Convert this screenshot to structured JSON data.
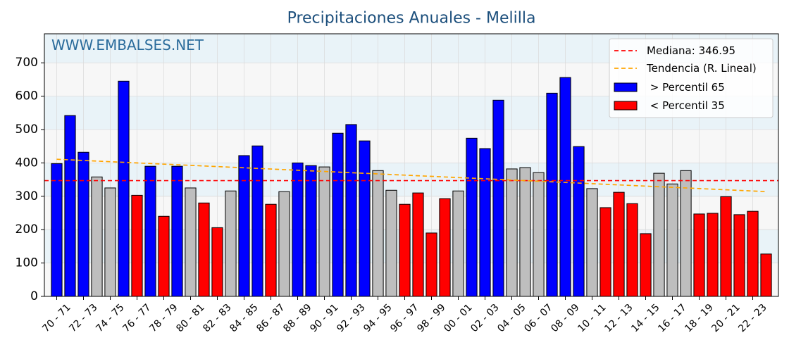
{
  "chart_data": {
    "type": "bar",
    "title": "Precipitaciones Anuales - Melilla",
    "watermark": "WWW.EMBALSES.NET",
    "xtick_labels": [
      "70 - 71",
      "72 - 73",
      "74 - 75",
      "76 - 77",
      "78 - 79",
      "80 - 81",
      "82 - 83",
      "84 - 85",
      "86 - 87",
      "88 - 89",
      "90 - 91",
      "92 - 93",
      "94 - 95",
      "96 - 97",
      "98 - 99",
      "00 - 01",
      "02 - 03",
      "04 - 05",
      "06 - 07",
      "08 - 09",
      "10 - 11",
      "12 - 13",
      "14 - 15",
      "16 - 17",
      "18 - 19",
      "20 - 21",
      "22 - 23"
    ],
    "yticks": [
      0,
      100,
      200,
      300,
      400,
      500,
      600,
      700
    ],
    "ylim": [
      0,
      787
    ],
    "values": [
      398,
      542,
      432,
      358,
      325,
      645,
      303,
      390,
      240,
      390,
      325,
      280,
      206,
      316,
      422,
      451,
      276,
      314,
      400,
      392,
      388,
      489,
      515,
      466,
      377,
      318,
      276,
      310,
      190,
      293,
      316,
      474,
      443,
      588,
      382,
      386,
      371,
      609,
      656,
      449,
      323,
      266,
      312,
      278,
      188,
      369,
      337,
      377,
      247,
      249,
      299,
      245,
      255,
      127
    ],
    "bar_colors": [
      "#0000ff",
      "#0000ff",
      "#0000ff",
      "#bebebe",
      "#bebebe",
      "#0000ff",
      "#ff0000",
      "#0000ff",
      "#ff0000",
      "#0000ff",
      "#bebebe",
      "#ff0000",
      "#ff0000",
      "#bebebe",
      "#0000ff",
      "#0000ff",
      "#ff0000",
      "#bebebe",
      "#0000ff",
      "#0000ff",
      "#bebebe",
      "#0000ff",
      "#0000ff",
      "#0000ff",
      "#bebebe",
      "#bebebe",
      "#ff0000",
      "#ff0000",
      "#ff0000",
      "#ff0000",
      "#bebebe",
      "#0000ff",
      "#0000ff",
      "#0000ff",
      "#bebebe",
      "#bebebe",
      "#bebebe",
      "#0000ff",
      "#0000ff",
      "#0000ff",
      "#bebebe",
      "#ff0000",
      "#ff0000",
      "#ff0000",
      "#ff0000",
      "#bebebe",
      "#bebebe",
      "#bebebe",
      "#ff0000",
      "#ff0000",
      "#ff0000",
      "#ff0000",
      "#ff0000",
      "#ff0000"
    ],
    "median": {
      "label": "Mediana: 346.95",
      "value": 346.95,
      "color": "#ff0000"
    },
    "trend": {
      "label": "Tendencia (R. Lineal)",
      "values": [
        411,
        314
      ],
      "color": "#ffa500"
    },
    "legend_patches": [
      {
        "label": " > Percentil 65",
        "color": "#0000ff"
      },
      {
        "label": " < Percentil 35",
        "color": "#ff0000"
      }
    ],
    "legend_position": "top-right",
    "grid": true,
    "band_colors": [
      "#f7f7f7",
      "#e9f3f8"
    ],
    "title_color": "#1c4f7c",
    "watermark_color": "#2a6b9b"
  }
}
